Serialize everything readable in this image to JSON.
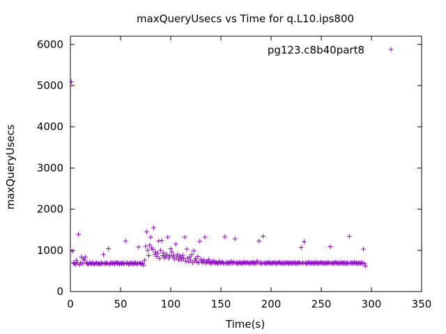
{
  "chart_data": {
    "type": "scatter",
    "title": "maxQueryUsecs vs Time for q.L10.ips800",
    "xlabel": "Time(s)",
    "ylabel": "maxQueryUsecs",
    "xlim": [
      0,
      350
    ],
    "ylim": [
      0,
      6200
    ],
    "xticks": [
      0,
      50,
      100,
      150,
      200,
      250,
      300,
      350
    ],
    "yticks": [
      0,
      1000,
      2000,
      3000,
      4000,
      5000,
      6000
    ],
    "grid": false,
    "legend_position": "top-right",
    "marker": "+",
    "colors": {
      "series": "#9400d3",
      "axes": "#000000"
    },
    "series": [
      {
        "name": "pg123.c8b40part8",
        "points": [
          [
            1,
            5090
          ],
          [
            2,
            980
          ],
          [
            3,
            700
          ],
          [
            4,
            680
          ],
          [
            5,
            660
          ],
          [
            6,
            760
          ],
          [
            7,
            700
          ],
          [
            8,
            1390
          ],
          [
            9,
            650
          ],
          [
            10,
            700
          ],
          [
            11,
            840
          ],
          [
            12,
            680
          ],
          [
            13,
            800
          ],
          [
            14,
            760
          ],
          [
            15,
            840
          ],
          [
            16,
            700
          ],
          [
            17,
            680
          ],
          [
            18,
            660
          ],
          [
            19,
            700
          ],
          [
            20,
            690
          ],
          [
            21,
            670
          ],
          [
            22,
            700
          ],
          [
            23,
            680
          ],
          [
            24,
            660
          ],
          [
            25,
            690
          ],
          [
            26,
            700
          ],
          [
            27,
            680
          ],
          [
            28,
            670
          ],
          [
            29,
            690
          ],
          [
            30,
            660
          ],
          [
            31,
            700
          ],
          [
            32,
            680
          ],
          [
            33,
            900
          ],
          [
            34,
            690
          ],
          [
            35,
            670
          ],
          [
            36,
            700
          ],
          [
            37,
            680
          ],
          [
            38,
            1040
          ],
          [
            39,
            660
          ],
          [
            40,
            700
          ],
          [
            41,
            690
          ],
          [
            42,
            680
          ],
          [
            43,
            700
          ],
          [
            44,
            670
          ],
          [
            45,
            690
          ],
          [
            46,
            710
          ],
          [
            47,
            680
          ],
          [
            48,
            700
          ],
          [
            49,
            660
          ],
          [
            50,
            690
          ],
          [
            51,
            680
          ],
          [
            52,
            700
          ],
          [
            53,
            670
          ],
          [
            54,
            690
          ],
          [
            55,
            1230
          ],
          [
            56,
            680
          ],
          [
            57,
            700
          ],
          [
            58,
            660
          ],
          [
            59,
            690
          ],
          [
            60,
            680
          ],
          [
            61,
            700
          ],
          [
            62,
            670
          ],
          [
            63,
            690
          ],
          [
            64,
            680
          ],
          [
            65,
            700
          ],
          [
            66,
            660
          ],
          [
            67,
            690
          ],
          [
            68,
            1080
          ],
          [
            69,
            700
          ],
          [
            70,
            680
          ],
          [
            71,
            670
          ],
          [
            72,
            690
          ],
          [
            73,
            640
          ],
          [
            74,
            760
          ],
          [
            75,
            1100
          ],
          [
            76,
            1450
          ],
          [
            77,
            1000
          ],
          [
            78,
            870
          ],
          [
            79,
            1130
          ],
          [
            80,
            1320
          ],
          [
            81,
            1060
          ],
          [
            82,
            1020
          ],
          [
            83,
            1550
          ],
          [
            84,
            900
          ],
          [
            85,
            960
          ],
          [
            86,
            850
          ],
          [
            87,
            930
          ],
          [
            88,
            1230
          ],
          [
            89,
            800
          ],
          [
            90,
            1000
          ],
          [
            91,
            1240
          ],
          [
            92,
            870
          ],
          [
            93,
            940
          ],
          [
            94,
            820
          ],
          [
            95,
            860
          ],
          [
            96,
            900
          ],
          [
            97,
            1320
          ],
          [
            98,
            810
          ],
          [
            99,
            870
          ],
          [
            100,
            1040
          ],
          [
            101,
            960
          ],
          [
            102,
            840
          ],
          [
            103,
            880
          ],
          [
            104,
            790
          ],
          [
            105,
            1150
          ],
          [
            106,
            830
          ],
          [
            107,
            900
          ],
          [
            108,
            770
          ],
          [
            109,
            860
          ],
          [
            110,
            820
          ],
          [
            111,
            760
          ],
          [
            112,
            880
          ],
          [
            113,
            800
          ],
          [
            114,
            1320
          ],
          [
            115,
            740
          ],
          [
            116,
            1030
          ],
          [
            117,
            810
          ],
          [
            118,
            720
          ],
          [
            119,
            840
          ],
          [
            120,
            760
          ],
          [
            121,
            900
          ],
          [
            122,
            700
          ],
          [
            123,
            990
          ],
          [
            124,
            760
          ],
          [
            125,
            800
          ],
          [
            126,
            720
          ],
          [
            127,
            850
          ],
          [
            128,
            700
          ],
          [
            129,
            1220
          ],
          [
            130,
            780
          ],
          [
            131,
            730
          ],
          [
            132,
            700
          ],
          [
            133,
            760
          ],
          [
            134,
            1320
          ],
          [
            135,
            690
          ],
          [
            136,
            740
          ],
          [
            137,
            710
          ],
          [
            138,
            780
          ],
          [
            139,
            700
          ],
          [
            140,
            690
          ],
          [
            141,
            720
          ],
          [
            142,
            700
          ],
          [
            143,
            750
          ],
          [
            144,
            690
          ],
          [
            145,
            710
          ],
          [
            146,
            700
          ],
          [
            147,
            680
          ],
          [
            148,
            730
          ],
          [
            149,
            700
          ],
          [
            150,
            690
          ],
          [
            151,
            720
          ],
          [
            152,
            700
          ],
          [
            153,
            680
          ],
          [
            154,
            1330
          ],
          [
            155,
            700
          ],
          [
            156,
            690
          ],
          [
            157,
            710
          ],
          [
            158,
            680
          ],
          [
            159,
            700
          ],
          [
            160,
            730
          ],
          [
            161,
            690
          ],
          [
            162,
            700
          ],
          [
            163,
            720
          ],
          [
            164,
            1280
          ],
          [
            165,
            690
          ],
          [
            166,
            700
          ],
          [
            167,
            680
          ],
          [
            168,
            710
          ],
          [
            169,
            700
          ],
          [
            170,
            690
          ],
          [
            171,
            700
          ],
          [
            172,
            680
          ],
          [
            173,
            720
          ],
          [
            174,
            700
          ],
          [
            175,
            690
          ],
          [
            176,
            710
          ],
          [
            177,
            700
          ],
          [
            178,
            680
          ],
          [
            179,
            700
          ],
          [
            180,
            690
          ],
          [
            181,
            700
          ],
          [
            182,
            720
          ],
          [
            183,
            680
          ],
          [
            184,
            700
          ],
          [
            185,
            690
          ],
          [
            186,
            740
          ],
          [
            187,
            700
          ],
          [
            188,
            1230
          ],
          [
            189,
            690
          ],
          [
            190,
            700
          ],
          [
            191,
            680
          ],
          [
            192,
            1340
          ],
          [
            193,
            700
          ],
          [
            194,
            690
          ],
          [
            195,
            680
          ],
          [
            196,
            700
          ],
          [
            197,
            710
          ],
          [
            198,
            690
          ],
          [
            199,
            700
          ],
          [
            200,
            680
          ],
          [
            201,
            690
          ],
          [
            202,
            700
          ],
          [
            203,
            710
          ],
          [
            204,
            690
          ],
          [
            205,
            680
          ],
          [
            206,
            700
          ],
          [
            207,
            690
          ],
          [
            208,
            710
          ],
          [
            209,
            700
          ],
          [
            210,
            680
          ],
          [
            211,
            690
          ],
          [
            212,
            700
          ],
          [
            213,
            680
          ],
          [
            214,
            700
          ],
          [
            215,
            690
          ],
          [
            216,
            710
          ],
          [
            217,
            680
          ],
          [
            218,
            700
          ],
          [
            219,
            690
          ],
          [
            220,
            700
          ],
          [
            221,
            680
          ],
          [
            222,
            710
          ],
          [
            223,
            690
          ],
          [
            224,
            700
          ],
          [
            225,
            680
          ],
          [
            226,
            690
          ],
          [
            227,
            700
          ],
          [
            228,
            710
          ],
          [
            229,
            680
          ],
          [
            230,
            1070
          ],
          [
            231,
            700
          ],
          [
            232,
            690
          ],
          [
            233,
            1210
          ],
          [
            234,
            700
          ],
          [
            235,
            680
          ],
          [
            236,
            690
          ],
          [
            237,
            700
          ],
          [
            238,
            710
          ],
          [
            239,
            680
          ],
          [
            240,
            700
          ],
          [
            241,
            690
          ],
          [
            242,
            700
          ],
          [
            243,
            680
          ],
          [
            244,
            710
          ],
          [
            245,
            690
          ],
          [
            246,
            700
          ],
          [
            247,
            680
          ],
          [
            248,
            690
          ],
          [
            249,
            700
          ],
          [
            250,
            710
          ],
          [
            251,
            690
          ],
          [
            252,
            700
          ],
          [
            253,
            680
          ],
          [
            254,
            690
          ],
          [
            255,
            700
          ],
          [
            256,
            680
          ],
          [
            257,
            710
          ],
          [
            258,
            690
          ],
          [
            259,
            1090
          ],
          [
            260,
            700
          ],
          [
            261,
            680
          ],
          [
            262,
            690
          ],
          [
            263,
            700
          ],
          [
            264,
            710
          ],
          [
            265,
            690
          ],
          [
            266,
            700
          ],
          [
            267,
            680
          ],
          [
            268,
            690
          ],
          [
            269,
            700
          ],
          [
            270,
            680
          ],
          [
            271,
            710
          ],
          [
            272,
            690
          ],
          [
            273,
            700
          ],
          [
            274,
            680
          ],
          [
            275,
            690
          ],
          [
            276,
            700
          ],
          [
            277,
            680
          ],
          [
            278,
            1340
          ],
          [
            279,
            700
          ],
          [
            280,
            690
          ],
          [
            281,
            700
          ],
          [
            282,
            680
          ],
          [
            283,
            710
          ],
          [
            284,
            690
          ],
          [
            285,
            700
          ],
          [
            286,
            680
          ],
          [
            287,
            690
          ],
          [
            288,
            700
          ],
          [
            289,
            680
          ],
          [
            290,
            700
          ],
          [
            291,
            690
          ],
          [
            292,
            1030
          ],
          [
            293,
            680
          ],
          [
            294,
            620
          ]
        ]
      }
    ]
  }
}
